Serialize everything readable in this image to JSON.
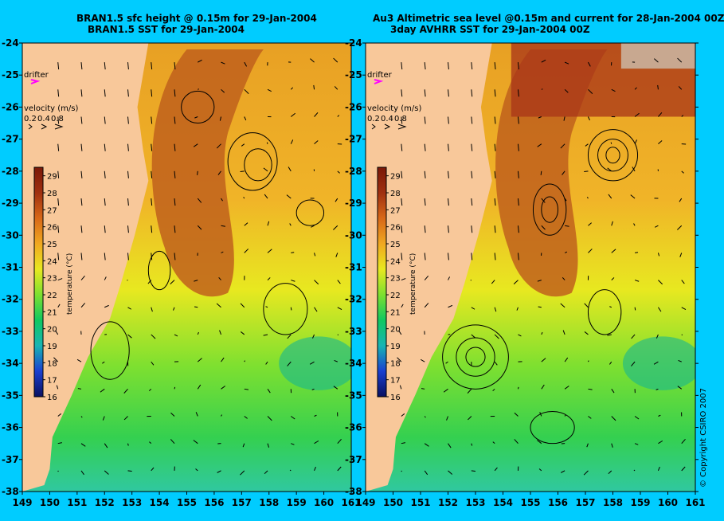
{
  "panels": [
    {
      "id": "left",
      "title_line1": "BRAN1.5 sfc height @ 0.15m for 29-Jan-2004",
      "title_line2": "BRAN1.5 SST for 29-Jan-2004",
      "source": "model"
    },
    {
      "id": "right",
      "title_line1": "Au3 Altimetric sea level  @0.15m and current for 28-Jan-2004 00Z",
      "title_line2": "3day AVHRR SST for 29-Jan-2004 00Z",
      "source": "observed"
    }
  ],
  "legend": {
    "drifter_label": "drifter",
    "velocity_label": "velocity (m/s)",
    "velocity_values": [
      "0.2",
      "0.4",
      "0.8"
    ],
    "temperature_label": "temperature (°C)",
    "temperature_ticks": [
      "29",
      "28",
      "27",
      "26",
      "25",
      "24",
      "23",
      "22",
      "21",
      "20",
      "19",
      "18",
      "17",
      "16"
    ],
    "temp_min": 16,
    "temp_max": 29.5
  },
  "axes": {
    "lat_labels": [
      "-24",
      "-25",
      "-26",
      "-27",
      "-28",
      "-29",
      "-30",
      "-31",
      "-32",
      "-33",
      "-34",
      "-35",
      "-36",
      "-37",
      "-38"
    ],
    "lon_labels": [
      "149",
      "150",
      "151",
      "152",
      "153",
      "154",
      "155",
      "156",
      "157",
      "158",
      "159",
      "160",
      "161"
    ],
    "lat_range": [
      -38,
      -24
    ],
    "lon_range": [
      149,
      161
    ]
  },
  "copyright": "© Copyright CSIRO 2007",
  "colors": {
    "background": "#00ccff",
    "land": "#f8c89a",
    "drifter": "#ff00ff",
    "colorbar": [
      "#0a1060",
      "#1a3fd0",
      "#18b4b4",
      "#10c860",
      "#7de030",
      "#e8e820",
      "#f0a820",
      "#d86818",
      "#a03010",
      "#7a1808"
    ]
  }
}
